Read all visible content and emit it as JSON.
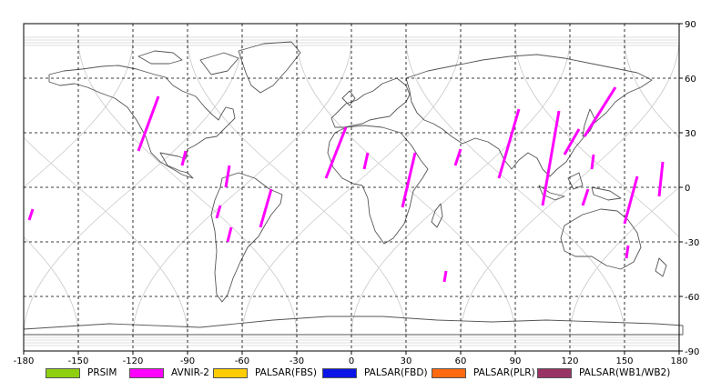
{
  "chart_data": {
    "type": "map",
    "x_axis": {
      "ticks": [
        -180,
        -150,
        -120,
        -90,
        -60,
        -30,
        0,
        30,
        60,
        90,
        120,
        150,
        180
      ],
      "range": [
        -180,
        180
      ]
    },
    "y_axis": {
      "ticks": [
        90,
        60,
        30,
        0,
        -30,
        -60,
        -90
      ],
      "range": [
        -90,
        90
      ],
      "side": "right"
    },
    "grid": "dashed",
    "legend": {
      "placement": "bottom",
      "items": [
        {
          "label": "PRSIM",
          "color": "#8ed00f"
        },
        {
          "label": "AVNIR-2",
          "color": "#ff00ff"
        },
        {
          "label": "PALSAR(FBS)",
          "color": "#ffcc00"
        },
        {
          "label": "PALSAR(FBD)",
          "color": "#0a14e6"
        },
        {
          "label": "PALSAR(PLR)",
          "color": "#ff6a10"
        },
        {
          "label": "PALSAR(WB1/WB2)",
          "color": "#993366"
        }
      ]
    },
    "avnir2_segments": [
      [
        [
          -106,
          50
        ],
        [
          -117,
          20
        ]
      ],
      [
        [
          -91,
          20
        ],
        [
          -93,
          12
        ]
      ],
      [
        [
          -67,
          12
        ],
        [
          -69,
          0
        ]
      ],
      [
        [
          -72,
          -10
        ],
        [
          -74,
          -17
        ]
      ],
      [
        [
          -66,
          -22
        ],
        [
          -68,
          -30
        ]
      ],
      [
        [
          -44,
          -1
        ],
        [
          -50,
          -22
        ]
      ],
      [
        [
          -175,
          -12
        ],
        [
          -177,
          -18
        ]
      ],
      [
        [
          -3,
          33
        ],
        [
          -14,
          5
        ]
      ],
      [
        [
          9,
          19
        ],
        [
          7,
          10
        ]
      ],
      [
        [
          35,
          19
        ],
        [
          28,
          -11
        ]
      ],
      [
        [
          60,
          21
        ],
        [
          57,
          12
        ]
      ],
      [
        [
          92,
          43
        ],
        [
          81,
          5
        ]
      ],
      [
        [
          114,
          42
        ],
        [
          105,
          -10
        ]
      ],
      [
        [
          125,
          32
        ],
        [
          117,
          18
        ]
      ],
      [
        [
          145,
          55
        ],
        [
          128,
          28
        ]
      ],
      [
        [
          133,
          18
        ],
        [
          132,
          10
        ]
      ],
      [
        [
          130,
          -1
        ],
        [
          127,
          -10
        ]
      ],
      [
        [
          157,
          6
        ],
        [
          150,
          -20
        ]
      ],
      [
        [
          171,
          14
        ],
        [
          169,
          -5
        ]
      ],
      [
        [
          152,
          -32
        ],
        [
          151,
          -39
        ]
      ],
      [
        [
          52,
          -46
        ],
        [
          51,
          -52
        ]
      ]
    ]
  }
}
